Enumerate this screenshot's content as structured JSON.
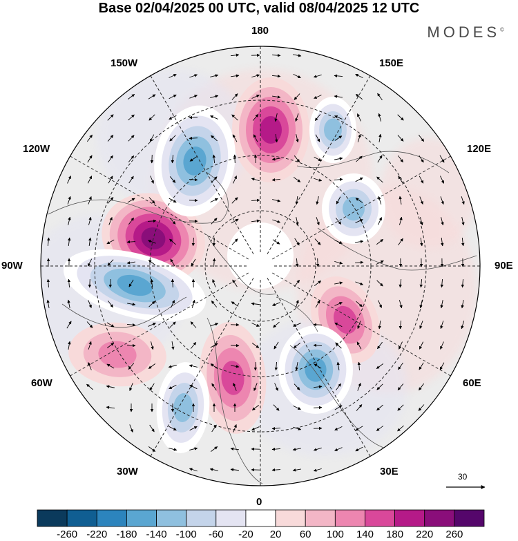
{
  "title": "Base 02/04/2025 00 UTC, valid 08/04/2025 12 UTC",
  "brand": "MODES",
  "brand_mark": "©",
  "longitude_labels": {
    "top": "180",
    "bottom": "0",
    "left": "90W",
    "right": "90E",
    "upper_left": "150W",
    "upper_right": "150E",
    "mid_upper_left": "120W",
    "mid_upper_right": "120E",
    "mid_lower_left": "60W",
    "mid_lower_right": "60E",
    "lower_left": "30W",
    "lower_right": "30E"
  },
  "vector_scale_label": "30",
  "colorbar": {
    "labels": [
      "-260",
      "-220",
      "-180",
      "-140",
      "-100",
      "-60",
      "-20",
      "20",
      "60",
      "100",
      "140",
      "180",
      "220",
      "260"
    ],
    "colors": [
      "#0b3a5c",
      "#105e92",
      "#2c84bd",
      "#5aa6d1",
      "#8fc0df",
      "#c4d4ea",
      "#e4e4f2",
      "#ffffff",
      "#f8dada",
      "#f3b6c6",
      "#ed86b0",
      "#d9489a",
      "#b51a88",
      "#8a0e7a",
      "#55066b"
    ]
  },
  "anomaly_centers": [
    {
      "sign": "positive",
      "level": 220
    },
    {
      "sign": "positive",
      "level": 180
    },
    {
      "sign": "positive",
      "level": 140
    },
    {
      "sign": "positive",
      "level": 140
    },
    {
      "sign": "positive",
      "level": 100
    },
    {
      "sign": "negative",
      "level": -180
    },
    {
      "sign": "negative",
      "level": -180
    },
    {
      "sign": "negative",
      "level": -180
    },
    {
      "sign": "negative",
      "level": -140
    },
    {
      "sign": "negative",
      "level": -140
    },
    {
      "sign": "negative",
      "level": -140
    }
  ]
}
